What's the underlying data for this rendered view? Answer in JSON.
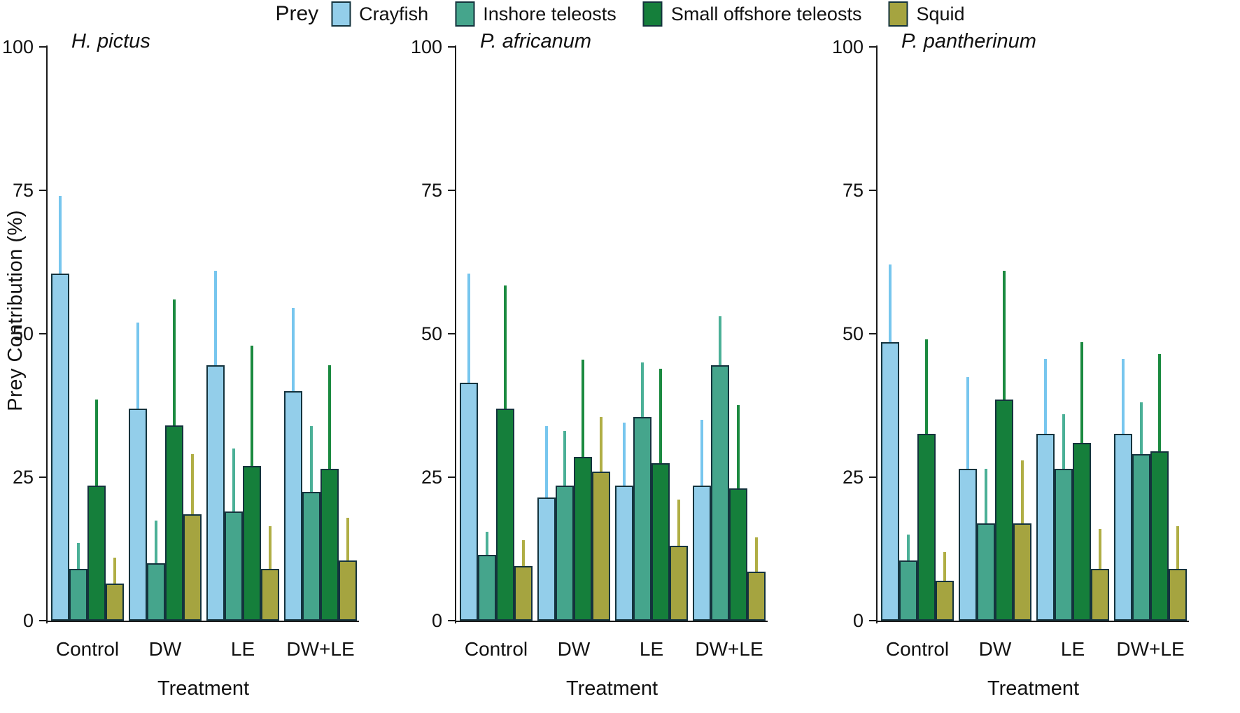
{
  "chart_data": {
    "type": "bar",
    "title": "",
    "ylabel": "Prey Contribution (%)",
    "xlabel": "Treatment",
    "ylim": [
      0,
      100
    ],
    "y_ticks": [
      0,
      25,
      50,
      75,
      100
    ],
    "grid": false,
    "legend_title": "Prey",
    "legend_position": "top-center",
    "error_bars": "upper only, no caps",
    "categories": [
      "Control",
      "DW",
      "LE",
      "DW+LE"
    ],
    "prey_series": [
      {
        "name": "Crayfish",
        "color": "#93ceea",
        "error_color": "#77c6ee"
      },
      {
        "name": "Inshore teleosts",
        "color": "#45a58c",
        "error_color": "#4bb097"
      },
      {
        "name": "Small offshore teleosts",
        "color": "#157f3b",
        "error_color": "#1b8a40"
      },
      {
        "name": "Squid",
        "color": "#a5a440",
        "error_color": "#b0ae45"
      }
    ],
    "bar_outline_color": "#14333d",
    "panels": [
      {
        "species": "H. pictus",
        "series": [
          {
            "name": "Crayfish",
            "values": [
              60.5,
              37,
              44.5,
              40
            ],
            "error_top": [
              74,
              52,
              61,
              54.5
            ]
          },
          {
            "name": "Inshore teleosts",
            "values": [
              9,
              10,
              19,
              22.5
            ],
            "error_top": [
              13.5,
              17.5,
              30,
              34
            ]
          },
          {
            "name": "Small offshore teleosts",
            "values": [
              23.5,
              34,
              27,
              26.5
            ],
            "error_top": [
              38.5,
              56,
              48,
              44.5
            ]
          },
          {
            "name": "Squid",
            "values": [
              6.5,
              18.5,
              9,
              10.5
            ],
            "error_top": [
              11,
              29,
              16.5,
              18
            ]
          }
        ]
      },
      {
        "species": "P. africanum",
        "series": [
          {
            "name": "Crayfish",
            "values": [
              41.5,
              21.5,
              23.5,
              23.5
            ],
            "error_top": [
              60.5,
              34,
              34.5,
              35
            ]
          },
          {
            "name": "Inshore teleosts",
            "values": [
              11.5,
              23.5,
              35.5,
              44.5
            ],
            "error_top": [
              15.5,
              33,
              45,
              53
            ]
          },
          {
            "name": "Small offshore teleosts",
            "values": [
              37,
              28.5,
              27.5,
              23
            ],
            "error_top": [
              58.5,
              45.5,
              44,
              37.5
            ]
          },
          {
            "name": "Squid",
            "values": [
              9.5,
              26,
              13,
              8.5
            ],
            "error_top": [
              14,
              35.5,
              21,
              14.5
            ]
          }
        ]
      },
      {
        "species": "P. pantherinum",
        "series": [
          {
            "name": "Crayfish",
            "values": [
              48.5,
              26.5,
              32.5,
              32.5
            ],
            "error_top": [
              62,
              42.5,
              45.5,
              45.5
            ]
          },
          {
            "name": "Inshore teleosts",
            "values": [
              10.5,
              17,
              26.5,
              29
            ],
            "error_top": [
              15,
              26.5,
              36,
              38
            ]
          },
          {
            "name": "Small offshore teleosts",
            "values": [
              32.5,
              38.5,
              31,
              29.5
            ],
            "error_top": [
              49,
              61,
              48.5,
              46.5
            ]
          },
          {
            "name": "Squid",
            "values": [
              7,
              17,
              9,
              9
            ],
            "error_top": [
              12,
              28,
              16,
              16.5
            ]
          }
        ]
      }
    ]
  }
}
